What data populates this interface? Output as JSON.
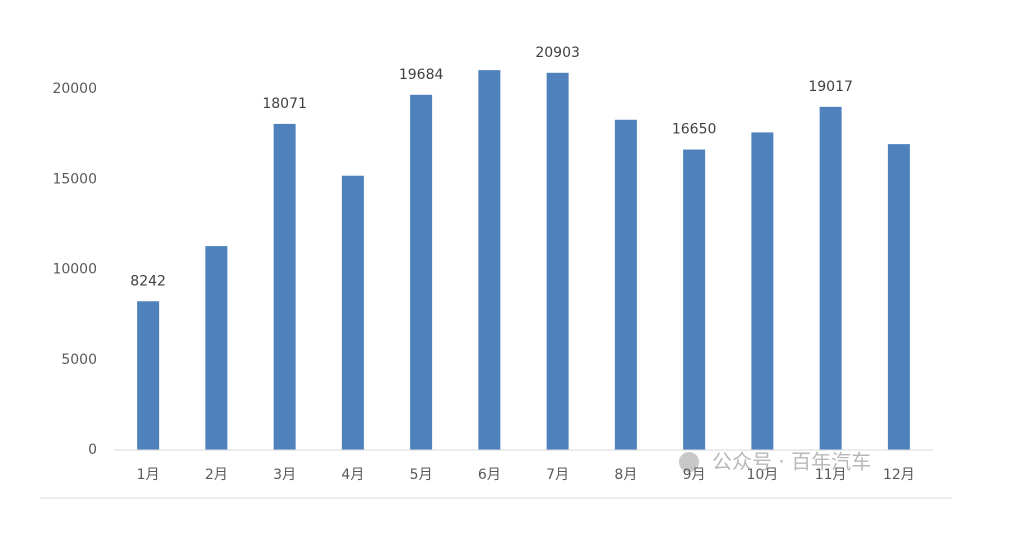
{
  "chart_data": {
    "type": "bar",
    "categories": [
      "1月",
      "2月",
      "3月",
      "4月",
      "5月",
      "6月",
      "7月",
      "8月",
      "9月",
      "10月",
      "11月",
      "12月"
    ],
    "values": [
      8242,
      11300,
      18071,
      15200,
      19684,
      21050,
      20903,
      18300,
      16650,
      17600,
      19017,
      16950
    ],
    "value_labels": [
      "8242",
      null,
      "18071",
      null,
      "19684",
      null,
      "20903",
      null,
      "16650",
      null,
      "19017",
      null
    ],
    "color": "#4f81bd",
    "ylim": [
      0,
      22000
    ],
    "yticks": [
      0,
      5000,
      10000,
      15000,
      20000
    ],
    "grid": false,
    "watermark": "公众号 · 百年汽车"
  }
}
